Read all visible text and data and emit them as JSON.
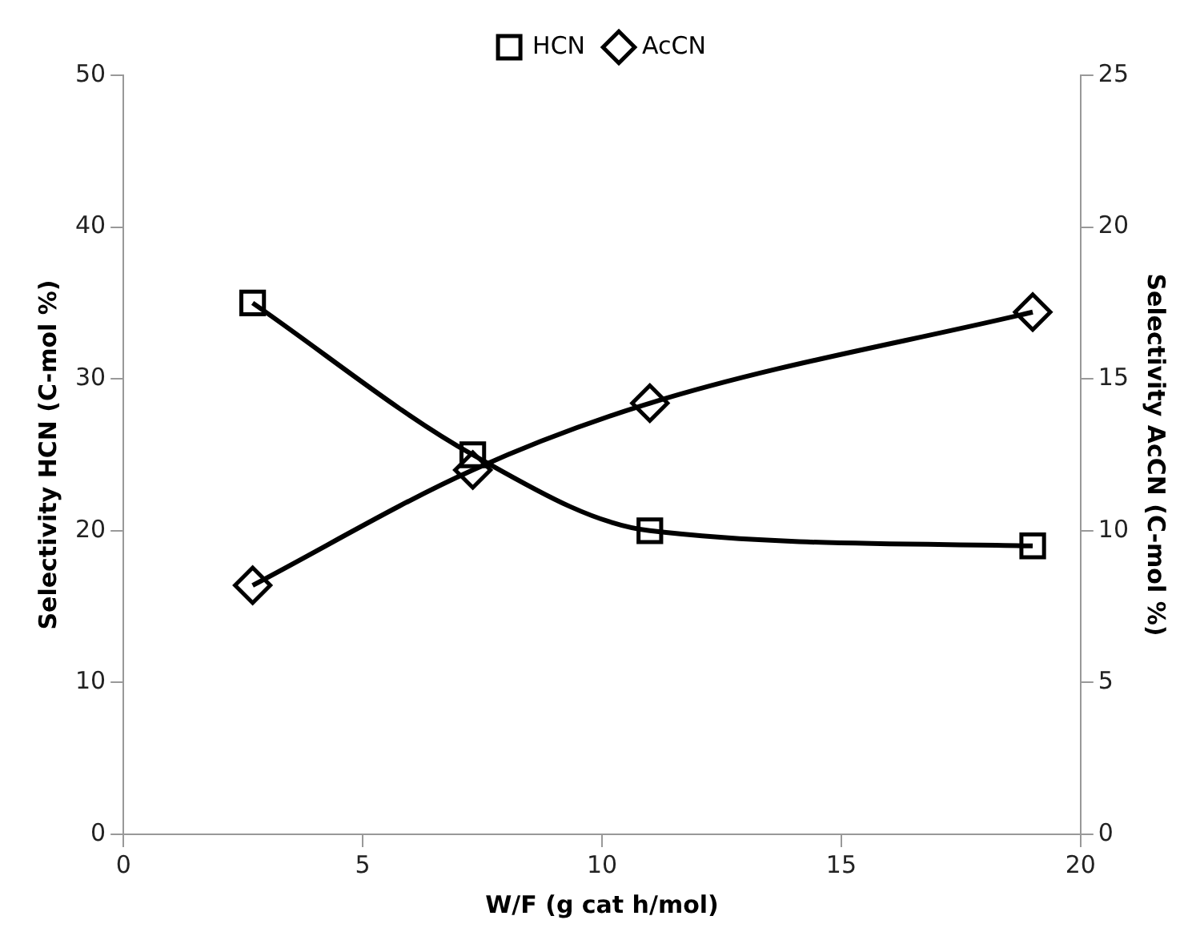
{
  "chart_data": {
    "type": "line",
    "xlabel": "W/F (g cat h/mol)",
    "ylabel": "Selectivity HCN (C-mol %)",
    "y2label": "Selectivity AcCN (C-mol %)",
    "xlim": [
      0,
      20
    ],
    "xticks": [
      0,
      5,
      10,
      15,
      20
    ],
    "ylim": [
      0,
      50
    ],
    "yticks": [
      0,
      10,
      20,
      30,
      40,
      50
    ],
    "y2lim": [
      0,
      25
    ],
    "y2ticks": [
      0,
      5,
      10,
      15,
      20,
      25
    ],
    "x": [
      2.7,
      7.3,
      11,
      19
    ],
    "series": [
      {
        "name": "HCN",
        "color": "#000000",
        "values": [
          35,
          25,
          20,
          19
        ],
        "marker": "square"
      },
      {
        "name": "AcCN",
        "color": "#000000",
        "values": [
          8.2,
          12.0,
          14.2,
          17.2
        ],
        "marker": "diamond",
        "axis": "y2"
      }
    ],
    "grid": false,
    "legend": "top",
    "line_style": "solid"
  }
}
